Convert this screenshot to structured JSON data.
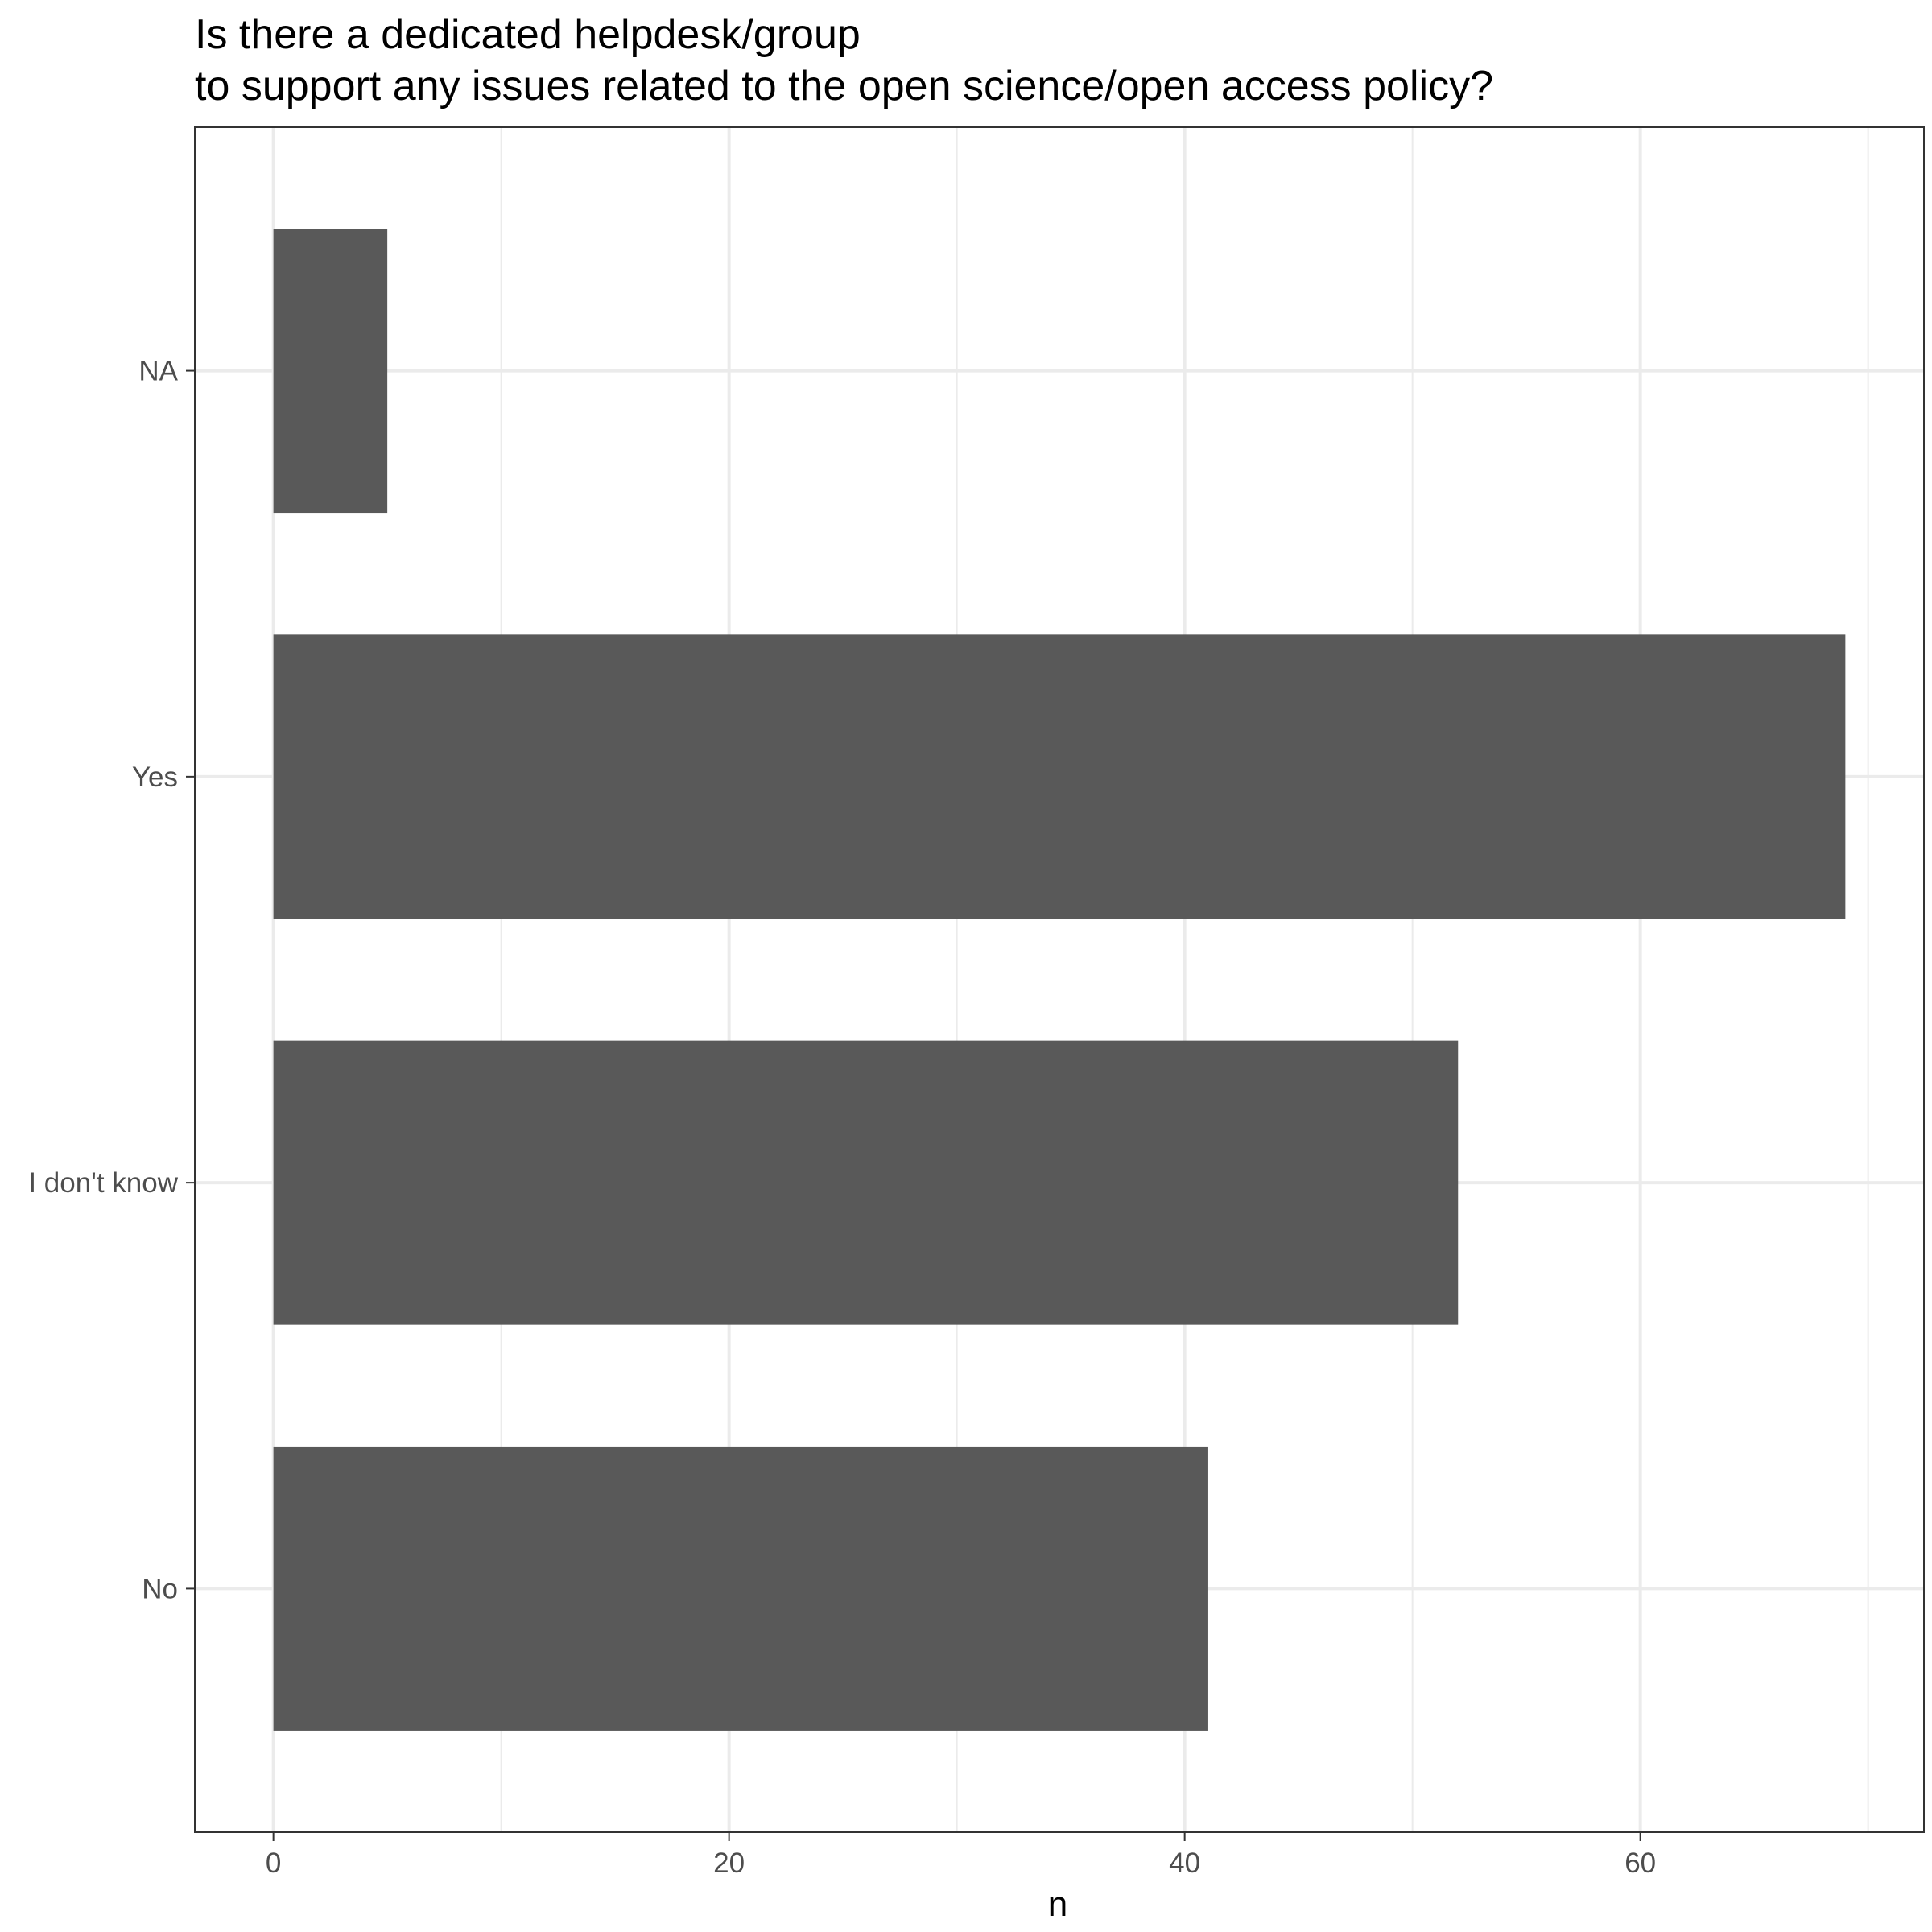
{
  "chart_data": {
    "type": "bar",
    "orientation": "horizontal",
    "title_lines": [
      "Is there a dedicated helpdesk/group",
      "to support any issues related to the open science/open access policy?"
    ],
    "categories": [
      "No",
      "I don't know",
      "Yes",
      "NA"
    ],
    "values": [
      41,
      52,
      69,
      5
    ],
    "xlabel": "n",
    "ylabel": "",
    "xlim": [
      -3.45,
      72.45
    ],
    "x_ticks": [
      0,
      20,
      40,
      60
    ],
    "x_minor_ticks": [
      10,
      30,
      50,
      70
    ],
    "grid": true,
    "legend": "none",
    "colors": {
      "bar": "#595959",
      "grid": "#ebebeb",
      "panel_border": "#333333",
      "tick_label": "#4d4d4d",
      "title": "#000000"
    }
  }
}
